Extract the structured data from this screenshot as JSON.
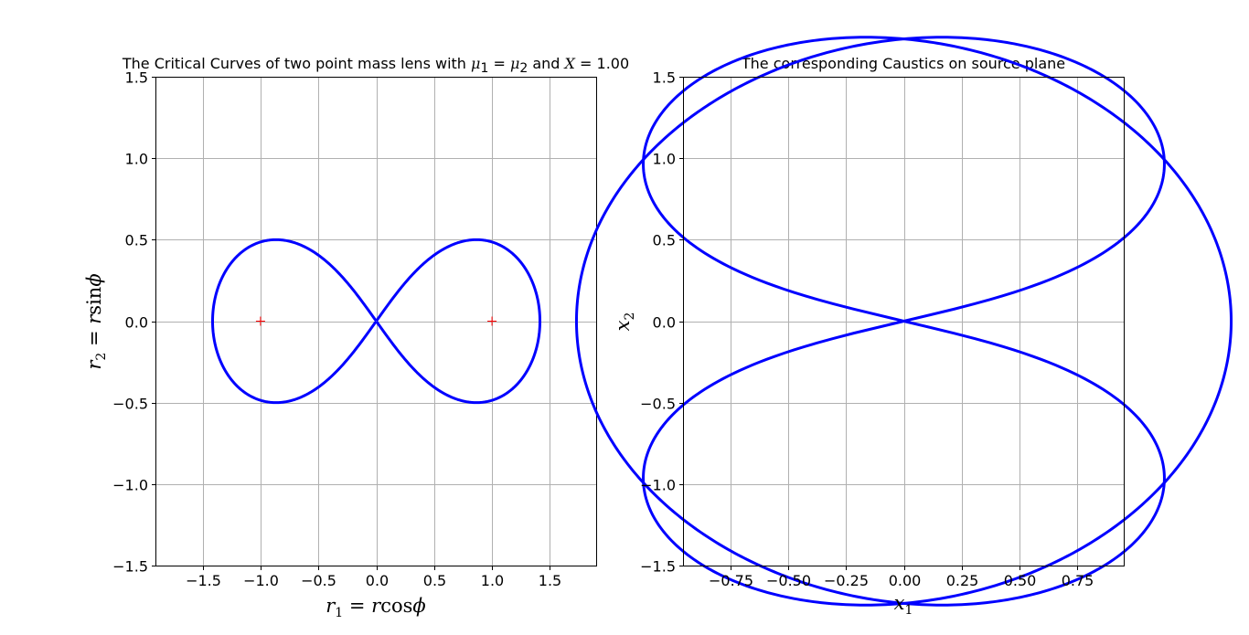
{
  "chart_data": [
    {
      "type": "scatter",
      "title_prefix": "The Critical Curves of two point mass lens with ",
      "title_mu1": "μ",
      "title_mu1_sub": "1",
      "title_eq1": " = ",
      "title_mu2": "μ",
      "title_mu2_sub": "2",
      "title_and": " and ",
      "title_X": "X",
      "title_eq2": " = 1.00",
      "xlabel_r": "r",
      "xlabel_sub": "1",
      "xlabel_rest": " = r",
      "xlabel_fn": "cos",
      "xlabel_phi": "ϕ",
      "ylabel_r": "r",
      "ylabel_sub": "2",
      "ylabel_rest": " = r",
      "ylabel_fn": "sin",
      "ylabel_phi": "ϕ",
      "xlim": [
        -1.9,
        1.9
      ],
      "ylim": [
        -1.5,
        1.5
      ],
      "xticks": [
        -1.5,
        -1.0,
        -0.5,
        0.0,
        0.5,
        1.0,
        1.5
      ],
      "yticks": [
        -1.5,
        -1.0,
        -0.5,
        0.0,
        0.5,
        1.0,
        1.5
      ],
      "xtick_labels": [
        "−1.5",
        "−1.0",
        "−0.5",
        "0.0",
        "0.5",
        "1.0",
        "1.5"
      ],
      "ytick_labels": [
        "−1.5",
        "−1.0",
        "−0.5",
        "0.0",
        "0.5",
        "1.0",
        "1.5"
      ],
      "grid": true,
      "curve": "lemniscate r^2 = 2X^2 cos(2ϕ), X = 1.00",
      "X": 1.0,
      "lens_positions": [
        {
          "x": -1.0,
          "y": 0.0
        },
        {
          "x": 1.0,
          "y": 0.0
        }
      ],
      "curve_color": "#0000ff",
      "lens_color": "#ff0000"
    },
    {
      "type": "scatter",
      "title": "The corresponding Caustics on source plane",
      "xlabel_x": "x",
      "xlabel_sub": "1",
      "ylabel_x": "x",
      "ylabel_sub": "2",
      "xlim": [
        -0.95,
        0.95
      ],
      "ylim": [
        -1.5,
        1.5
      ],
      "xticks": [
        -0.75,
        -0.5,
        -0.25,
        0.0,
        0.25,
        0.5,
        0.75
      ],
      "yticks": [
        -1.5,
        -1.0,
        -0.5,
        0.0,
        0.5,
        1.0,
        1.5
      ],
      "xtick_labels": [
        "−0.75",
        "−0.50",
        "−0.25",
        "0.00",
        "0.25",
        "0.50",
        "0.75"
      ],
      "ytick_labels": [
        "−1.5",
        "−1.0",
        "−0.5",
        "0.0",
        "0.5",
        "1.0",
        "1.5"
      ],
      "grid": true,
      "curve": "lens map x = r − (r − X)/|r − X|^2 − (r + X)/|r + X|^2 applied to the critical curve",
      "curve_color": "#0000ff"
    }
  ]
}
